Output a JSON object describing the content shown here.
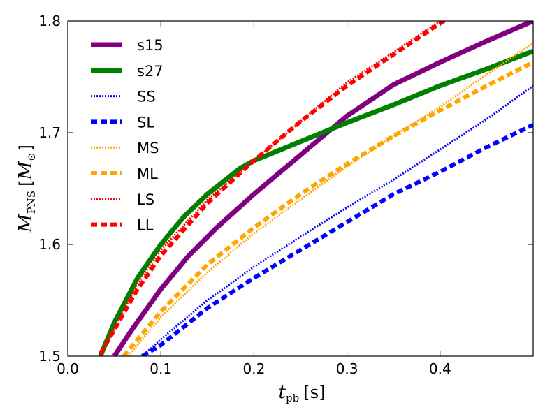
{
  "chart_data": {
    "type": "line",
    "title": "",
    "xlabel": {
      "var": "t",
      "sub": "pb",
      "unit": "[s]"
    },
    "ylabel": {
      "var": "M",
      "sub": "PNS",
      "unit_open": "[",
      "unit_var": "M",
      "unit_sub": "⊙",
      "unit_close": "]"
    },
    "xlim": [
      0.0,
      0.5
    ],
    "ylim": [
      1.5,
      1.8
    ],
    "xticks": [
      0.0,
      0.1,
      0.2,
      0.3,
      0.4
    ],
    "xtick_labels": [
      "0.0",
      "0.1",
      "0.2",
      "0.3",
      "0.4"
    ],
    "yticks": [
      1.5,
      1.6,
      1.7,
      1.8
    ],
    "ytick_labels": [
      "1.5",
      "1.6",
      "1.7",
      "1.8"
    ],
    "grid": false,
    "legend_position": "top-left",
    "series": [
      {
        "name": "s15",
        "color": "#800080",
        "style": "solid",
        "width": 7,
        "x": [
          0.05,
          0.07,
          0.1,
          0.13,
          0.16,
          0.2,
          0.25,
          0.3,
          0.35,
          0.4,
          0.45,
          0.5
        ],
        "y": [
          1.5,
          1.525,
          1.56,
          1.59,
          1.615,
          1.645,
          1.68,
          1.715,
          1.743,
          1.763,
          1.782,
          1.8
        ]
      },
      {
        "name": "s27",
        "color": "#008000",
        "style": "solid",
        "width": 7,
        "x": [
          0.035,
          0.05,
          0.075,
          0.1,
          0.125,
          0.15,
          0.185,
          0.2,
          0.25,
          0.3,
          0.35,
          0.4,
          0.45,
          0.5
        ],
        "y": [
          1.5,
          1.53,
          1.57,
          1.6,
          1.625,
          1.645,
          1.668,
          1.675,
          1.692,
          1.709,
          1.725,
          1.742,
          1.757,
          1.773
        ]
      },
      {
        "name": "SS",
        "color": "#0000ff",
        "style": "dotted",
        "width": 3,
        "x": [
          0.08,
          0.1,
          0.15,
          0.2,
          0.25,
          0.3,
          0.35,
          0.4,
          0.45,
          0.5
        ],
        "y": [
          1.5,
          1.515,
          1.55,
          1.58,
          1.607,
          1.633,
          1.658,
          1.685,
          1.712,
          1.742
        ]
      },
      {
        "name": "SL",
        "color": "#0000ff",
        "style": "dashed",
        "width": 6,
        "x": [
          0.08,
          0.1,
          0.15,
          0.2,
          0.25,
          0.3,
          0.35,
          0.4,
          0.45,
          0.5
        ],
        "y": [
          1.5,
          1.51,
          1.543,
          1.57,
          1.595,
          1.62,
          1.645,
          1.665,
          1.687,
          1.707
        ]
      },
      {
        "name": "MS",
        "color": "#ffa500",
        "style": "dotted",
        "width": 3,
        "x": [
          0.065,
          0.1,
          0.15,
          0.2,
          0.25,
          0.3,
          0.35,
          0.4,
          0.45,
          0.5
        ],
        "y": [
          1.5,
          1.535,
          1.575,
          1.61,
          1.64,
          1.67,
          1.697,
          1.723,
          1.752,
          1.78
        ]
      },
      {
        "name": "ML",
        "color": "#ffa500",
        "style": "dashed",
        "width": 6,
        "x": [
          0.06,
          0.1,
          0.15,
          0.2,
          0.25,
          0.3,
          0.35,
          0.4,
          0.45,
          0.5
        ],
        "y": [
          1.5,
          1.54,
          1.582,
          1.615,
          1.645,
          1.672,
          1.697,
          1.72,
          1.742,
          1.763
        ]
      },
      {
        "name": "LS",
        "color": "#ff0000",
        "style": "dotted",
        "width": 3,
        "x": [
          0.035,
          0.075,
          0.1,
          0.15,
          0.2,
          0.25,
          0.3,
          0.35,
          0.4,
          0.41
        ],
        "y": [
          1.5,
          1.565,
          1.595,
          1.64,
          1.675,
          1.71,
          1.745,
          1.772,
          1.8,
          1.805
        ]
      },
      {
        "name": "LL",
        "color": "#ff0000",
        "style": "dashed",
        "width": 6,
        "x": [
          0.035,
          0.075,
          0.1,
          0.15,
          0.2,
          0.25,
          0.3,
          0.35,
          0.4,
          0.41
        ],
        "y": [
          1.502,
          1.56,
          1.59,
          1.637,
          1.675,
          1.71,
          1.742,
          1.77,
          1.798,
          1.803
        ]
      }
    ]
  }
}
